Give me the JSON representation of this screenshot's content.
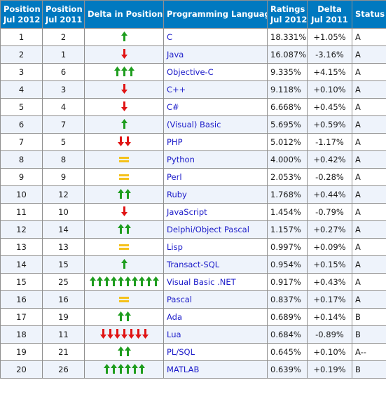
{
  "colors": {
    "header_bg": "#0079c0",
    "header_text": "#ffffff",
    "row_alt_bg": "#eef3fb",
    "language_link": "#1b1bc9",
    "arrow_up": "#1e9d1e",
    "arrow_down": "#e01414",
    "equal": "#f5c11b"
  },
  "headers": {
    "pos_2012": "Position\nJul 2012",
    "pos_2011": "Position\nJul 2011",
    "delta_pos": "Delta in Position",
    "language": "Programming Language",
    "ratings": "Ratings\nJul 2012",
    "delta": "Delta\nJul 2011",
    "status": "Status"
  },
  "rows": [
    {
      "pos2012": "1",
      "pos2011": "2",
      "trend": "up",
      "count": 1,
      "language": "C",
      "rating": "18.331%",
      "delta": "+1.05%",
      "status": "A"
    },
    {
      "pos2012": "2",
      "pos2011": "1",
      "trend": "down",
      "count": 1,
      "language": "Java",
      "rating": "16.087%",
      "delta": "-3.16%",
      "status": "A"
    },
    {
      "pos2012": "3",
      "pos2011": "6",
      "trend": "up",
      "count": 3,
      "language": "Objective-C",
      "rating": "9.335%",
      "delta": "+4.15%",
      "status": "A"
    },
    {
      "pos2012": "4",
      "pos2011": "3",
      "trend": "down",
      "count": 1,
      "language": "C++",
      "rating": "9.118%",
      "delta": "+0.10%",
      "status": "A"
    },
    {
      "pos2012": "5",
      "pos2011": "4",
      "trend": "down",
      "count": 1,
      "language": "C#",
      "rating": "6.668%",
      "delta": "+0.45%",
      "status": "A"
    },
    {
      "pos2012": "6",
      "pos2011": "7",
      "trend": "up",
      "count": 1,
      "language": "(Visual) Basic",
      "rating": "5.695%",
      "delta": "+0.59%",
      "status": "A"
    },
    {
      "pos2012": "7",
      "pos2011": "5",
      "trend": "down",
      "count": 2,
      "language": "PHP",
      "rating": "5.012%",
      "delta": "-1.17%",
      "status": "A"
    },
    {
      "pos2012": "8",
      "pos2011": "8",
      "trend": "equal",
      "count": 1,
      "language": "Python",
      "rating": "4.000%",
      "delta": "+0.42%",
      "status": "A"
    },
    {
      "pos2012": "9",
      "pos2011": "9",
      "trend": "equal",
      "count": 1,
      "language": "Perl",
      "rating": "2.053%",
      "delta": "-0.28%",
      "status": "A"
    },
    {
      "pos2012": "10",
      "pos2011": "12",
      "trend": "up",
      "count": 2,
      "language": "Ruby",
      "rating": "1.768%",
      "delta": "+0.44%",
      "status": "A"
    },
    {
      "pos2012": "11",
      "pos2011": "10",
      "trend": "down",
      "count": 1,
      "language": "JavaScript",
      "rating": "1.454%",
      "delta": "-0.79%",
      "status": "A"
    },
    {
      "pos2012": "12",
      "pos2011": "14",
      "trend": "up",
      "count": 2,
      "language": "Delphi/Object Pascal",
      "rating": "1.157%",
      "delta": "+0.27%",
      "status": "A"
    },
    {
      "pos2012": "13",
      "pos2011": "13",
      "trend": "equal",
      "count": 1,
      "language": "Lisp",
      "rating": "0.997%",
      "delta": "+0.09%",
      "status": "A"
    },
    {
      "pos2012": "14",
      "pos2011": "15",
      "trend": "up",
      "count": 1,
      "language": "Transact-SQL",
      "rating": "0.954%",
      "delta": "+0.15%",
      "status": "A"
    },
    {
      "pos2012": "15",
      "pos2011": "25",
      "trend": "up",
      "count": 10,
      "language": "Visual Basic .NET",
      "rating": "0.917%",
      "delta": "+0.43%",
      "status": "A"
    },
    {
      "pos2012": "16",
      "pos2011": "16",
      "trend": "equal",
      "count": 1,
      "language": "Pascal",
      "rating": "0.837%",
      "delta": "+0.17%",
      "status": "A"
    },
    {
      "pos2012": "17",
      "pos2011": "19",
      "trend": "up",
      "count": 2,
      "language": "Ada",
      "rating": "0.689%",
      "delta": "+0.14%",
      "status": "B"
    },
    {
      "pos2012": "18",
      "pos2011": "11",
      "trend": "down",
      "count": 7,
      "language": "Lua",
      "rating": "0.684%",
      "delta": "-0.89%",
      "status": "B"
    },
    {
      "pos2012": "19",
      "pos2011": "21",
      "trend": "up",
      "count": 2,
      "language": "PL/SQL",
      "rating": "0.645%",
      "delta": "+0.10%",
      "status": "A--"
    },
    {
      "pos2012": "20",
      "pos2011": "26",
      "trend": "up",
      "count": 6,
      "language": "MATLAB",
      "rating": "0.639%",
      "delta": "+0.19%",
      "status": "B"
    }
  ]
}
